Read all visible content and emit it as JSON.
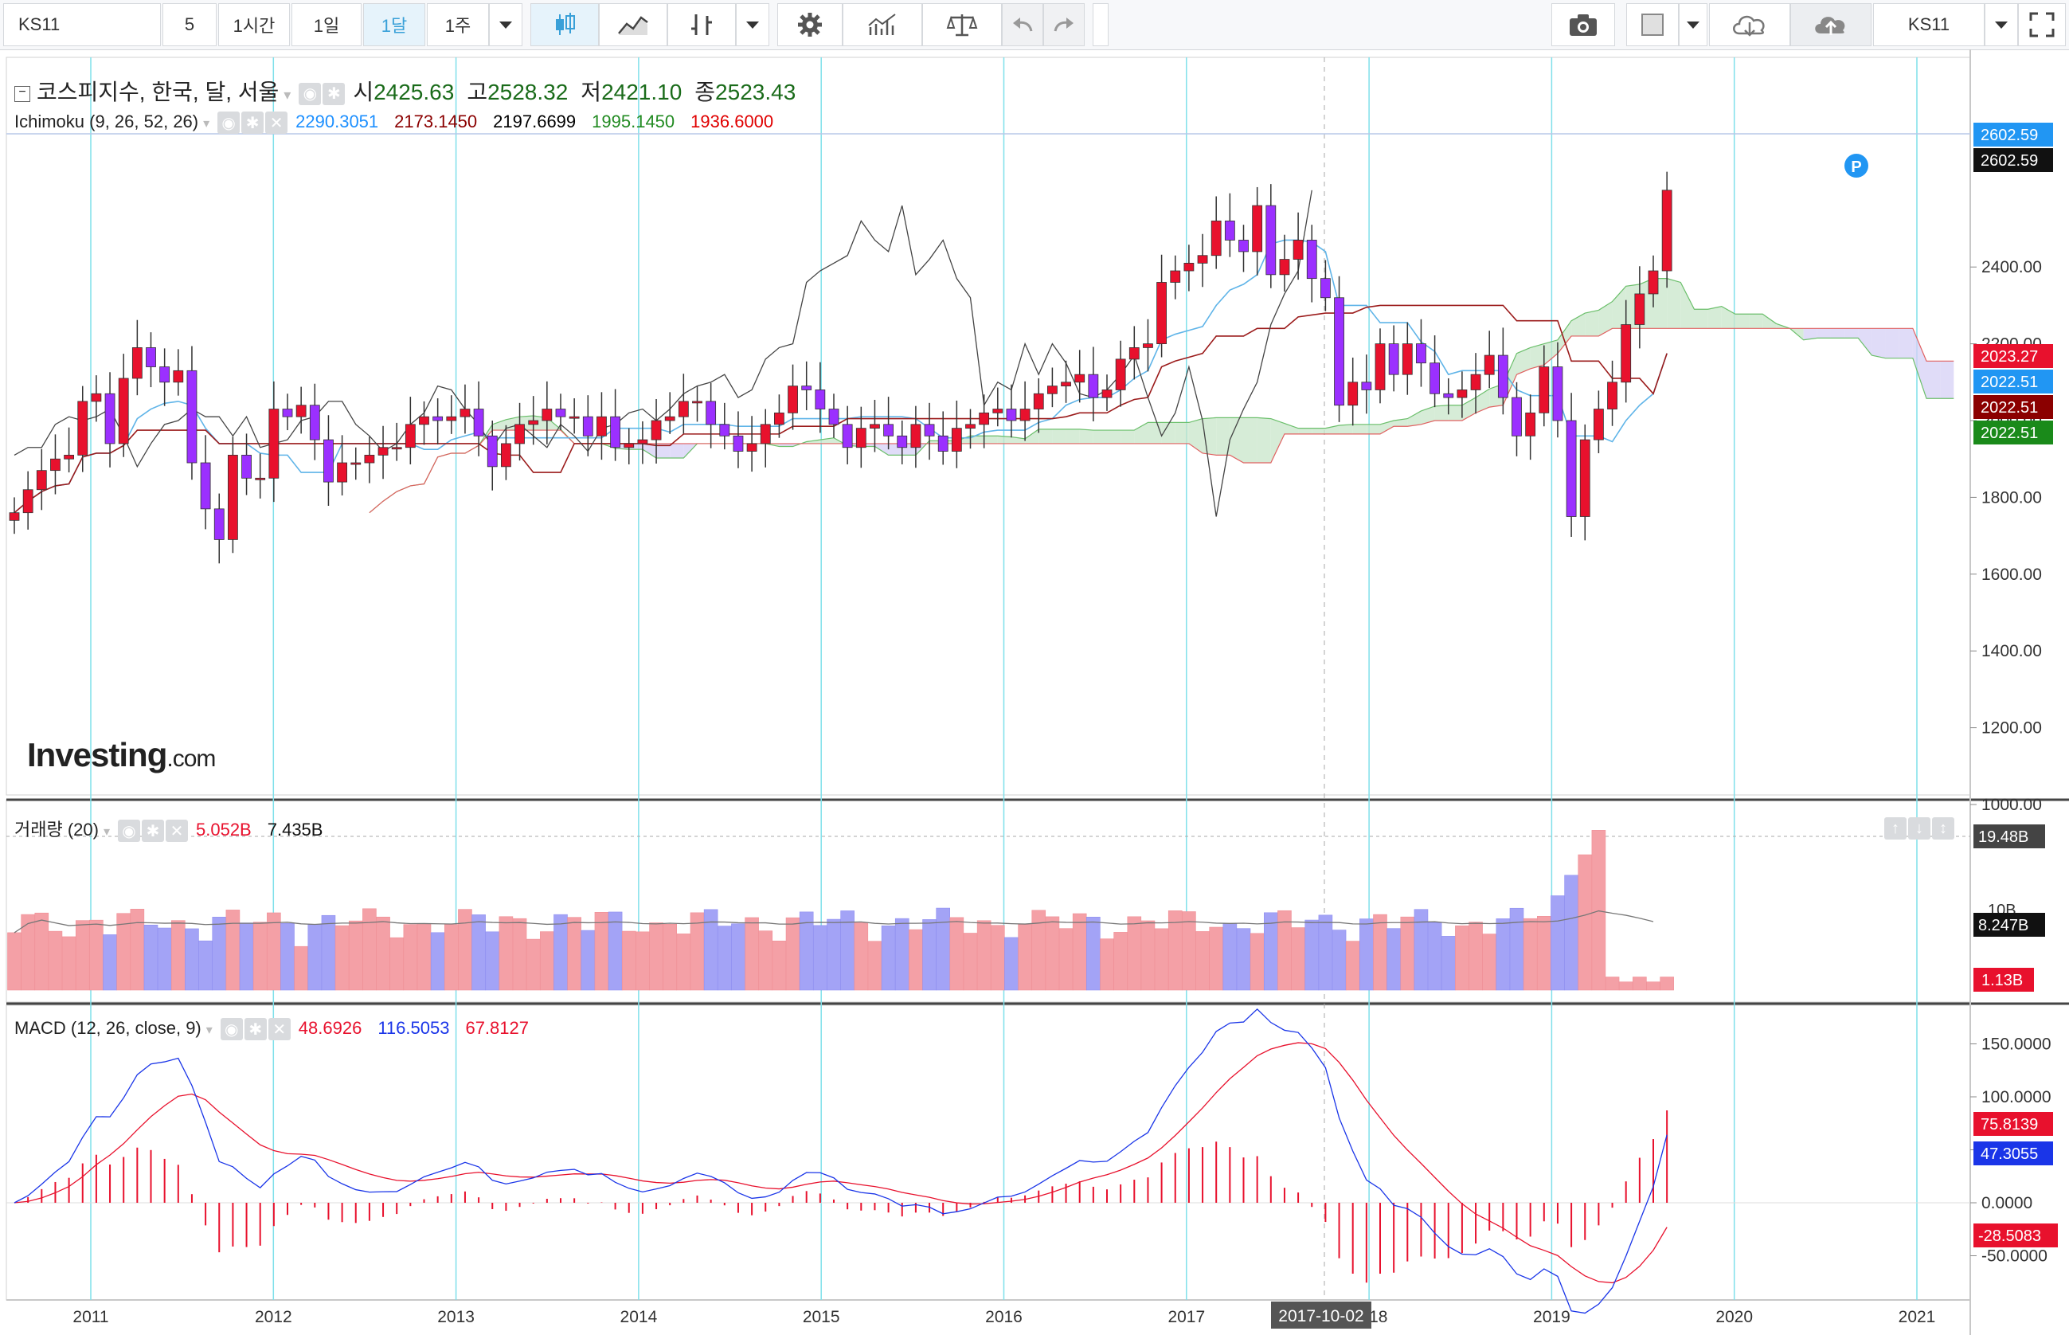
{
  "toolbar": {
    "symbol": "KS11",
    "intervals": [
      "5",
      "1시간",
      "1일",
      "1달",
      "1주"
    ],
    "active_interval": "1달",
    "right_symbol": "KS11"
  },
  "main_pane": {
    "title": "코스피지수, 한국, 달, 서울",
    "ohlc": {
      "o_label": "시",
      "o": "2425.63",
      "h_label": "고",
      "h": "2528.32",
      "l_label": "저",
      "l": "2421.10",
      "c_label": "종",
      "c": "2523.43"
    },
    "ichimoku_label": "Ichimoku (9, 26, 52, 26)",
    "ichimoku_values": [
      "2290.3051",
      "2173.1450",
      "2197.6699",
      "1995.1450",
      "1936.6000"
    ],
    "ichimoku_colors": [
      "#1e90ff",
      "#8b0000",
      "#000000",
      "#228b22",
      "#e00000"
    ],
    "watermark": "Investing",
    "watermark_suffix": ".com",
    "y_ticks": [
      "2400.00",
      "2200.00",
      "2000.00",
      "1800.00",
      "1600.00",
      "1400.00",
      "1200.00",
      "1000.00"
    ],
    "price_tags": [
      "2602.59",
      "2602.59",
      "2023.27",
      "2022.51",
      "2022.51",
      "2022.51"
    ],
    "p_marker": "P"
  },
  "volume_pane": {
    "label": "거래량 (20)",
    "values": [
      "5.052B",
      "7.435B"
    ],
    "tags": [
      "19.48B",
      "8.247B",
      "1.13B"
    ],
    "axis_hint": "10B"
  },
  "macd_pane": {
    "label": "MACD (12, 26, close, 9)",
    "values": [
      "48.6926",
      "116.5053",
      "67.8127"
    ],
    "y_ticks": [
      "150.0000",
      "100.0000",
      "50.0000",
      "0.0000",
      "-50.0000"
    ],
    "tags": [
      "75.8139",
      "47.3055",
      "-28.5083"
    ]
  },
  "x_axis": {
    "labels": [
      "2011",
      "2012",
      "2013",
      "2014",
      "2015",
      "2016",
      "2017",
      "2018",
      "2019",
      "2020",
      "2021"
    ],
    "crosshair_label": "2017-10-02"
  },
  "chart_data": {
    "type": "candlestick",
    "title": "코스피지수, 한국, 달, 서울",
    "interval": "monthly",
    "x_range": [
      "2010-07",
      "2020-11"
    ],
    "y_range": [
      900,
      2650
    ],
    "series": [
      {
        "name": "close",
        "values": [
          1760,
          1820,
          1870,
          1900,
          1910,
          2050,
          2070,
          1940,
          2110,
          2190,
          2140,
          2100,
          2130,
          1890,
          1770,
          1690,
          1910,
          1850,
          1850,
          2030,
          2010,
          2040,
          1950,
          1840,
          1890,
          1890,
          1910,
          1930,
          1930,
          1990,
          2010,
          2000,
          2010,
          2030,
          1960,
          1880,
          1940,
          1990,
          2000,
          2030,
          2010,
          2010,
          1960,
          2010,
          1930,
          1940,
          1950,
          2000,
          2010,
          2050,
          2050,
          1990,
          1960,
          1920,
          1940,
          1990,
          2020,
          2090,
          2080,
          2030,
          1990,
          1930,
          1980,
          1990,
          1960,
          1930,
          1990,
          1960,
          1920,
          1980,
          1990,
          2020,
          2030,
          2000,
          2030,
          2070,
          2090,
          2100,
          2120,
          2060,
          2080,
          2160,
          2190,
          2200,
          2360,
          2390,
          2410,
          2430,
          2520,
          2470,
          2440,
          2560,
          2380,
          2420,
          2470,
          2370,
          2320,
          2040,
          2100,
          2080,
          2200,
          2120,
          2200,
          2150,
          2070,
          2060,
          2080,
          2120,
          2170,
          2060,
          1960,
          2020,
          2140,
          2000,
          1750,
          1950,
          2030,
          2100,
          2250,
          2330,
          2390,
          2600
        ]
      }
    ]
  }
}
